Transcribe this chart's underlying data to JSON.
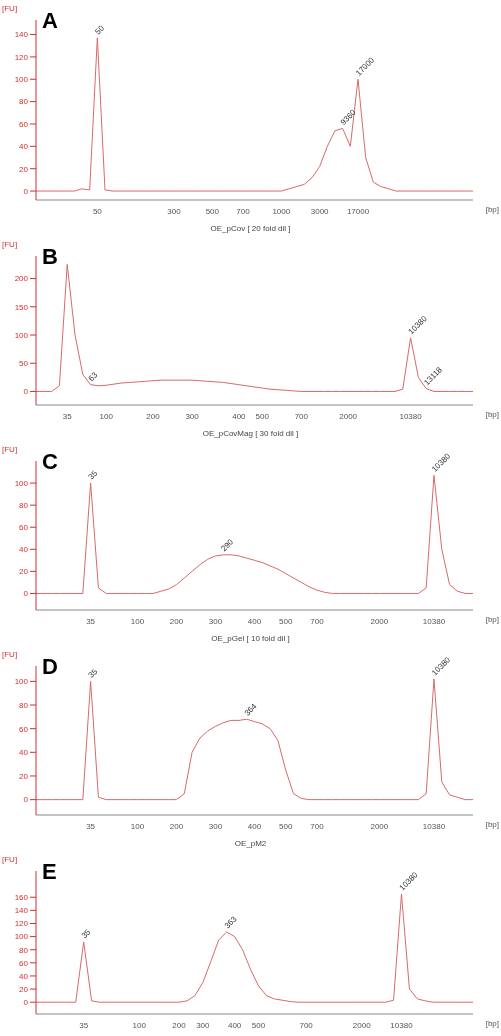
{
  "chart_data": [
    {
      "type": "line",
      "xlabel": "[bp]",
      "ylabel": "[FU]",
      "color": "#d86a6a",
      "ylim": [
        -8,
        153
      ],
      "yticks": [
        0,
        20,
        40,
        60,
        80,
        100,
        120,
        140
      ],
      "annotations": [
        "A",
        {
          "text": "50",
          "x": "50",
          "y": 137
        },
        {
          "text": "9360",
          "y": 56
        },
        {
          "text": "17000",
          "x": "17000",
          "y": 100
        }
      ],
      "categories": [
        null,
        null,
        null,
        null,
        null,
        null,
        null,
        null,
        "50",
        null,
        null,
        null,
        null,
        null,
        null,
        null,
        null,
        null,
        "300",
        null,
        null,
        null,
        null,
        "500",
        null,
        null,
        null,
        "700",
        null,
        null,
        null,
        null,
        "1000",
        null,
        null,
        null,
        null,
        "3000",
        null,
        null,
        null,
        null,
        "17000",
        null,
        null,
        null,
        null,
        null,
        null,
        null,
        null,
        null,
        null,
        null,
        null,
        null,
        null,
        null
      ],
      "values": [
        0,
        0,
        0,
        0,
        0,
        0,
        2,
        1,
        137,
        1,
        0,
        0,
        0,
        0,
        0,
        0,
        0,
        0,
        0,
        0,
        0,
        0,
        0,
        0,
        0,
        0,
        0,
        0,
        0,
        0,
        0,
        0,
        0,
        2,
        4,
        6,
        12,
        22,
        40,
        54,
        56,
        40,
        100,
        30,
        8,
        4,
        2,
        0,
        0,
        0,
        0,
        0,
        0,
        0,
        0,
        0,
        0,
        0
      ]
    },
    {
      "type": "line",
      "title": "OE_pCov  [ 20 fold dil ]",
      "xlabel": "[bp]",
      "ylabel": "[FU]",
      "color": "#d86a6a",
      "ylim": [
        -24,
        240
      ],
      "yticks": [
        0,
        50,
        100,
        150,
        200
      ],
      "annotations": [
        "B",
        {
          "text": "63",
          "y": 12
        },
        {
          "text": "10380",
          "x": "10380",
          "y": 95
        },
        {
          "text": "13118",
          "y": 5
        }
      ],
      "categories": [
        null,
        null,
        null,
        null,
        "35",
        null,
        null,
        null,
        null,
        "100",
        null,
        null,
        null,
        null,
        null,
        "200",
        null,
        null,
        null,
        null,
        "300",
        null,
        null,
        null,
        null,
        null,
        "400",
        null,
        null,
        "500",
        null,
        null,
        null,
        null,
        "700",
        null,
        null,
        null,
        null,
        null,
        "2000",
        null,
        null,
        null,
        null,
        null,
        null,
        null,
        "10380",
        null,
        null,
        null,
        null,
        null,
        null,
        null,
        null
      ],
      "values": [
        0,
        0,
        0,
        10,
        225,
        100,
        30,
        12,
        10,
        11,
        13,
        15,
        16,
        17,
        18,
        19,
        20,
        20,
        20,
        20,
        20,
        19,
        18,
        17,
        16,
        14,
        12,
        10,
        8,
        6,
        4,
        3,
        2,
        1,
        0,
        0,
        0,
        0,
        0,
        0,
        0,
        0,
        0,
        0,
        0,
        0,
        0,
        4,
        95,
        25,
        5,
        0,
        0,
        0,
        0,
        0,
        0
      ]
    },
    {
      "type": "line",
      "title": "OE_pCovMag  [ 30 fold dil ]",
      "xlabel": "[bp]",
      "ylabel": "[FU]",
      "color": "#d86a6a",
      "ylim": [
        -15,
        120
      ],
      "yticks": [
        0,
        20,
        40,
        60,
        80,
        100
      ],
      "annotations": [
        "C",
        {
          "text": "35",
          "x": "35",
          "y": 100
        },
        {
          "text": "290",
          "y": 35
        },
        {
          "text": "10380",
          "x": "10380",
          "y": 107
        }
      ],
      "categories": [
        null,
        null,
        null,
        null,
        null,
        null,
        null,
        "35",
        null,
        null,
        null,
        null,
        null,
        "100",
        null,
        null,
        null,
        null,
        "200",
        null,
        null,
        null,
        null,
        "300",
        null,
        null,
        null,
        null,
        "400",
        null,
        null,
        null,
        "500",
        null,
        null,
        null,
        "700",
        null,
        null,
        null,
        null,
        null,
        null,
        null,
        "2000",
        null,
        null,
        null,
        null,
        null,
        null,
        "10380",
        null,
        null,
        null,
        null,
        null
      ],
      "values": [
        0,
        0,
        0,
        0,
        0,
        0,
        0,
        100,
        5,
        0,
        0,
        0,
        0,
        0,
        0,
        0,
        2,
        4,
        8,
        14,
        20,
        26,
        31,
        34,
        35,
        35,
        34,
        32,
        30,
        28,
        25,
        22,
        18,
        14,
        10,
        6,
        3,
        1,
        0,
        0,
        0,
        0,
        0,
        0,
        0,
        0,
        0,
        0,
        0,
        0,
        5,
        107,
        40,
        8,
        2,
        0,
        0
      ]
    },
    {
      "type": "line",
      "title": "OE_pGel  [ 10 fold dil ]",
      "xlabel": "[bp]",
      "ylabel": "[FU]",
      "color": "#d86a6a",
      "ylim": [
        -13,
        113
      ],
      "yticks": [
        0,
        20,
        40,
        60,
        80,
        100
      ],
      "annotations": [
        "D",
        {
          "text": "35",
          "x": "35",
          "y": 100
        },
        {
          "text": "364",
          "y": 68
        },
        {
          "text": "10380",
          "x": "10380",
          "y": 102
        }
      ],
      "categories": [
        null,
        null,
        null,
        null,
        null,
        null,
        null,
        "35",
        null,
        null,
        null,
        null,
        null,
        "100",
        null,
        null,
        null,
        null,
        "200",
        null,
        null,
        null,
        null,
        "300",
        null,
        null,
        null,
        null,
        "400",
        null,
        null,
        null,
        "500",
        null,
        null,
        null,
        "700",
        null,
        null,
        null,
        null,
        null,
        null,
        null,
        "2000",
        null,
        null,
        null,
        null,
        null,
        null,
        "10380",
        null,
        null,
        null,
        null,
        null
      ],
      "values": [
        0,
        0,
        0,
        0,
        0,
        0,
        0,
        100,
        2,
        0,
        0,
        0,
        0,
        0,
        0,
        0,
        0,
        0,
        0,
        5,
        40,
        52,
        58,
        62,
        65,
        67,
        67,
        68,
        66,
        64,
        60,
        50,
        25,
        5,
        1,
        0,
        0,
        0,
        0,
        0,
        0,
        0,
        0,
        0,
        0,
        0,
        0,
        0,
        0,
        0,
        5,
        102,
        15,
        4,
        2,
        0,
        0
      ]
    },
    {
      "type": "line",
      "title": "OE_pM2",
      "xlabel": "[bp]",
      "ylabel": "[FU]",
      "color": "#d86a6a",
      "ylim": [
        -18,
        200
      ],
      "yticks": [
        0,
        20,
        40,
        60,
        80,
        100,
        120,
        140,
        160
      ],
      "annotations": [
        "E",
        {
          "text": "35",
          "x": "35",
          "y": 92
        },
        {
          "text": "363",
          "y": 107
        },
        {
          "text": "10380",
          "x": "10380",
          "y": 165
        }
      ],
      "categories": [
        null,
        null,
        null,
        null,
        null,
        null,
        "35",
        null,
        null,
        null,
        null,
        null,
        null,
        "100",
        null,
        null,
        null,
        null,
        "200",
        null,
        null,
        "300",
        null,
        null,
        null,
        "400",
        null,
        null,
        "500",
        null,
        null,
        null,
        null,
        null,
        "700",
        null,
        null,
        null,
        null,
        null,
        null,
        "2000",
        null,
        null,
        null,
        null,
        "10380",
        null,
        null,
        null,
        null,
        null,
        null,
        null,
        null,
        null
      ],
      "values": [
        0,
        0,
        0,
        0,
        0,
        0,
        92,
        2,
        0,
        0,
        0,
        0,
        0,
        0,
        0,
        0,
        0,
        0,
        0,
        2,
        10,
        30,
        62,
        95,
        107,
        100,
        80,
        50,
        25,
        10,
        5,
        3,
        1,
        0,
        0,
        0,
        0,
        0,
        0,
        0,
        0,
        0,
        0,
        0,
        0,
        3,
        165,
        20,
        5,
        2,
        0,
        0,
        0,
        0,
        0,
        0
      ]
    }
  ]
}
